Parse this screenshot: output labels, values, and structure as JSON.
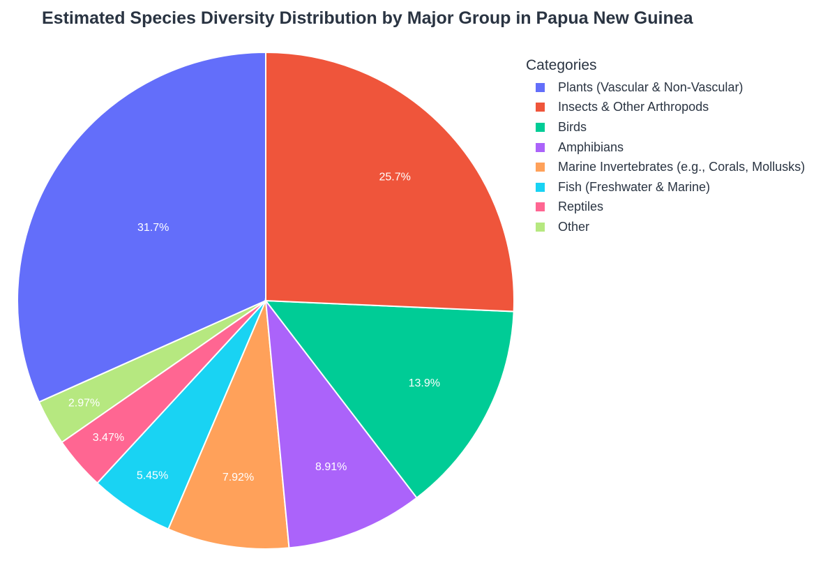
{
  "chart_data": {
    "type": "pie",
    "title": "Estimated Species Diversity Distribution by Major Group in Papua New Guinea",
    "legend_title": "Categories",
    "legend_position": "right",
    "direction": "clockwise",
    "start_angle": "12 o'clock",
    "categories": [
      "Plants (Vascular & Non-Vascular)",
      "Insects & Other Arthropods",
      "Birds",
      "Amphibians",
      "Marine Invertebrates (e.g., Corals, Mollusks)",
      "Fish (Freshwater & Marine)",
      "Reptiles",
      "Other"
    ],
    "values": [
      31.7,
      25.7,
      13.9,
      8.91,
      7.92,
      5.45,
      3.47,
      2.97
    ],
    "labels": [
      "31.7%",
      "25.7%",
      "13.9%",
      "8.91%",
      "7.92%",
      "5.45%",
      "3.47%",
      "2.97%"
    ],
    "colors": [
      "#636efa",
      "#ef553b",
      "#00cc96",
      "#ab63fa",
      "#ffa15a",
      "#19d3f3",
      "#ff6692",
      "#b6e880"
    ],
    "draw_order": [
      0,
      7,
      6,
      5,
      4,
      3,
      2,
      1
    ]
  }
}
